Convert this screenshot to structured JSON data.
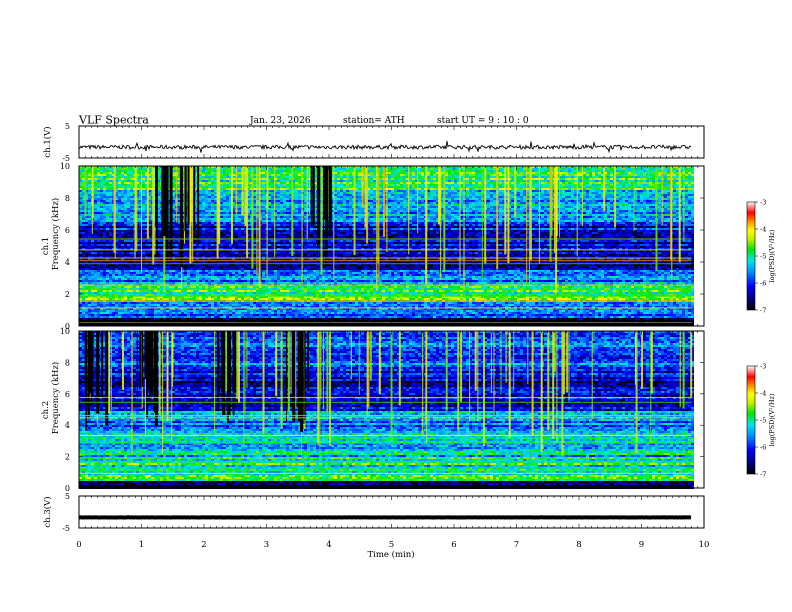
{
  "header": {
    "title": "VLF  Spectra",
    "date": "Jan. 23, 2026",
    "station": "station= ATH",
    "start_ut": "start  UT  =   9  : 10 : 0"
  },
  "chart_data": [
    {
      "type": "line",
      "panel": "ch1-waveform",
      "ylabel": "ch.1(V)",
      "yticks": [
        "5",
        "-5"
      ],
      "ylim": [
        -5,
        5
      ],
      "xlim": [
        0,
        10
      ],
      "data_extent_min": [
        0,
        9.8
      ],
      "baseline_v": -1.6,
      "amplitude_v": 0.6
    },
    {
      "type": "heatmap",
      "panel": "ch1-spectrogram",
      "ylabel_line1": "ch.1",
      "ylabel_line2": "Frequency  (kHz)",
      "yticks": [
        "10",
        "8",
        "6",
        "4",
        "2",
        "0"
      ],
      "ylim_khz": [
        0,
        10
      ],
      "xlim_min": [
        0,
        10
      ],
      "colorbar": {
        "label": "log(PSD)(V²/Hz)",
        "ticks": [
          "-3",
          "-4",
          "-5",
          "-6",
          "-7"
        ],
        "range": [
          -7,
          -3
        ]
      },
      "bands_khz": [
        {
          "from": 0,
          "to": 0.5,
          "level": -6.9
        },
        {
          "from": 0.5,
          "to": 1.5,
          "level": -5.6
        },
        {
          "from": 1.5,
          "to": 2.5,
          "level": -4.8
        },
        {
          "from": 2.5,
          "to": 3.5,
          "level": -5.7
        },
        {
          "from": 3.5,
          "to": 5.0,
          "level": -6.4
        },
        {
          "from": 5.0,
          "to": 6.5,
          "level": -6.2
        },
        {
          "from": 6.5,
          "to": 8.5,
          "level": -5.5
        },
        {
          "from": 8.5,
          "to": 10,
          "level": -4.9
        }
      ]
    },
    {
      "type": "heatmap",
      "panel": "ch2-spectrogram",
      "ylabel_line1": "ch.2",
      "ylabel_line2": "Frequency  (kHz)",
      "yticks": [
        "10",
        "8",
        "6",
        "4",
        "2",
        "0"
      ],
      "ylim_khz": [
        0,
        10
      ],
      "xlim_min": [
        0,
        10
      ],
      "colorbar": {
        "label": "log(PSD)(V²/Hz)",
        "ticks": [
          "-3",
          "-4",
          "-5",
          "-6",
          "-7"
        ],
        "range": [
          -7,
          -3
        ]
      },
      "bands_khz": [
        {
          "from": 0,
          "to": 0.5,
          "level": -6.8
        },
        {
          "from": 0.5,
          "to": 2.0,
          "level": -5.0
        },
        {
          "from": 2.0,
          "to": 3.5,
          "level": -5.3
        },
        {
          "from": 3.5,
          "to": 5.0,
          "level": -5.6
        },
        {
          "from": 5.0,
          "to": 7.5,
          "level": -6.3
        },
        {
          "from": 7.5,
          "to": 10,
          "level": -5.8
        }
      ]
    },
    {
      "type": "line",
      "panel": "ch3-waveform",
      "ylabel": "ch.3(V)",
      "yticks": [
        "5",
        "-5"
      ],
      "ylim": [
        -5,
        5
      ],
      "xlim": [
        0,
        10
      ],
      "data_extent_min": [
        0,
        9.8
      ],
      "baseline_v": -1.7,
      "amplitude_v": 0.1,
      "xlabel": "Time  (min)",
      "xticks": [
        "0",
        "1",
        "2",
        "3",
        "4",
        "5",
        "6",
        "7",
        "8",
        "9",
        "10"
      ]
    }
  ]
}
